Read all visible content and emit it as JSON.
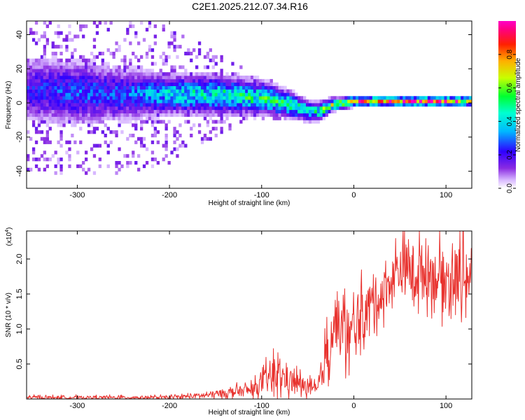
{
  "title": "C2E1.2025.212.07.34.R16",
  "colors": {
    "snr_line": "#e8322e",
    "spec_low": "#ffffff",
    "spec_mid": "#5a10ff",
    "spec_high": "#e00020"
  },
  "chart_data": [
    {
      "type": "heatmap",
      "title": "C2E1.2025.212.07.34.R16",
      "xlabel": "Height of straight line (km)",
      "ylabel": "Frequency (Hz)",
      "xlim": [
        -355,
        128
      ],
      "ylim": [
        -50,
        48
      ],
      "xticks": [
        -300,
        -200,
        -100,
        0,
        100
      ],
      "yticks": [
        -40,
        -20,
        0,
        20,
        40
      ],
      "colorbar": {
        "label": "Normalized spectral amplitude",
        "range": [
          0.0,
          1.0
        ],
        "ticks": [
          "0.0",
          "0.2",
          "0.4",
          "0.6",
          "0.8"
        ],
        "colormap": "rainbow (white-purple-blue-cyan-green-yellow-red-magenta)"
      },
      "ridge": {
        "description": "main energy band centered near 0 Hz, dipping to about -5 Hz near -45 km and narrowing to a thin band above 0 km",
        "x": [
          -355,
          -300,
          -250,
          -200,
          -150,
          -100,
          -70,
          -50,
          -40,
          -25,
          0,
          50,
          100,
          128
        ],
        "center_freq": [
          8,
          6,
          5,
          5,
          5,
          3,
          -1,
          -5,
          -5,
          -1,
          1,
          1,
          1,
          1
        ],
        "peak_amplitude": [
          0.25,
          0.3,
          0.3,
          0.45,
          0.5,
          0.55,
          0.55,
          0.5,
          0.55,
          0.7,
          0.9,
          0.95,
          0.95,
          0.8
        ],
        "half_width": [
          10,
          10,
          8,
          6,
          6,
          5,
          4,
          3,
          3,
          2,
          1.5,
          1.5,
          1.5,
          1.5
        ],
        "scatter_spread": [
          48,
          48,
          48,
          40,
          24,
          14,
          8,
          6,
          4,
          3,
          2,
          2,
          2,
          2
        ]
      }
    },
    {
      "type": "line",
      "xlabel": "Height of straight line (km)",
      "ylabel": "SNR (10 * v/v)",
      "multiplier": "(x10^4)",
      "xlim": [
        -355,
        128
      ],
      "ylim": [
        0,
        2.4
      ],
      "xticks": [
        -300,
        -200,
        -100,
        0,
        100
      ],
      "yticks": [
        "0.5",
        "1.0",
        "1.5",
        "2.0"
      ],
      "series": [
        {
          "color": "#e8322e",
          "envelope_x": [
            -355,
            -250,
            -200,
            -160,
            -140,
            -110,
            -100,
            -90,
            -80,
            -70,
            -60,
            -50,
            -40,
            -35,
            -30,
            -25,
            -20,
            -15,
            -10,
            -5,
            0,
            5,
            10,
            20,
            30,
            40,
            50,
            60,
            70,
            80,
            90,
            100,
            110,
            120,
            128
          ],
          "envelope_mean": [
            0.02,
            0.02,
            0.02,
            0.05,
            0.08,
            0.12,
            0.2,
            0.3,
            0.3,
            0.25,
            0.2,
            0.15,
            0.1,
            0.35,
            0.55,
            0.85,
            1.1,
            0.95,
            0.9,
            0.85,
            0.9,
            1.1,
            1.15,
            1.35,
            1.45,
            1.65,
            1.85,
            1.8,
            1.75,
            1.8,
            1.7,
            1.65,
            1.7,
            1.75,
            1.7
          ],
          "envelope_spread": [
            0.03,
            0.03,
            0.03,
            0.06,
            0.08,
            0.12,
            0.18,
            0.35,
            0.3,
            0.25,
            0.2,
            0.15,
            0.12,
            0.3,
            0.45,
            0.55,
            0.5,
            0.55,
            0.6,
            0.55,
            0.6,
            0.6,
            0.45,
            0.45,
            0.45,
            0.4,
            0.5,
            0.55,
            0.6,
            0.55,
            0.5,
            0.6,
            0.6,
            0.65,
            0.6
          ]
        }
      ]
    }
  ]
}
